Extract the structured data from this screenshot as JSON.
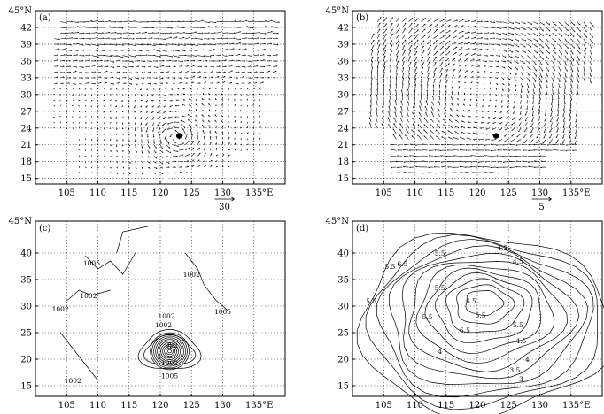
{
  "figure": {
    "panels": [
      {
        "id": "a",
        "label": "(a)",
        "kind": "vector",
        "y_ticks": [
          "15",
          "18",
          "21",
          "24",
          "27",
          "30",
          "33",
          "36",
          "39",
          "42"
        ],
        "y_top_label": "45°N",
        "x_ticks": [
          "105",
          "110",
          "115",
          "120",
          "125",
          "130",
          "135°E"
        ],
        "reference_vector": "30"
      },
      {
        "id": "b",
        "label": "(b)",
        "kind": "vector",
        "y_ticks": [
          "15",
          "18",
          "21",
          "24",
          "27",
          "30",
          "33",
          "36",
          "39",
          "42"
        ],
        "y_top_label": "45°N",
        "x_ticks": [
          "105",
          "110",
          "115",
          "120",
          "125",
          "130",
          "135°E"
        ],
        "reference_vector": "5"
      },
      {
        "id": "c",
        "label": "(c)",
        "kind": "contour",
        "y_ticks": [
          "15",
          "20",
          "25",
          "30",
          "35",
          "40"
        ],
        "y_top_label": "45°N",
        "x_ticks": [
          "105",
          "110",
          "115",
          "120",
          "125",
          "130",
          "135°E"
        ],
        "contour_labels": [
          "1005",
          "1002",
          "1002",
          "1002",
          "1002",
          "1005",
          "1002",
          "992",
          "1002",
          "1005",
          "1002"
        ]
      },
      {
        "id": "d",
        "label": "(d)",
        "kind": "contour",
        "y_ticks": [
          "15",
          "20",
          "25",
          "30",
          "35",
          "40"
        ],
        "y_top_label": "45°N",
        "x_ticks": [
          "105",
          "110",
          "115",
          "120",
          "125",
          "130",
          "135°E"
        ],
        "contour_labels": [
          "5.5",
          "4.5",
          "6.5",
          "5.5",
          "5.5",
          "5.5",
          "6.5",
          "5.5",
          "6.5",
          "5.5",
          "4.5",
          "4",
          "3.5",
          "3",
          "4",
          "4.5",
          "5.5"
        ]
      }
    ]
  }
}
